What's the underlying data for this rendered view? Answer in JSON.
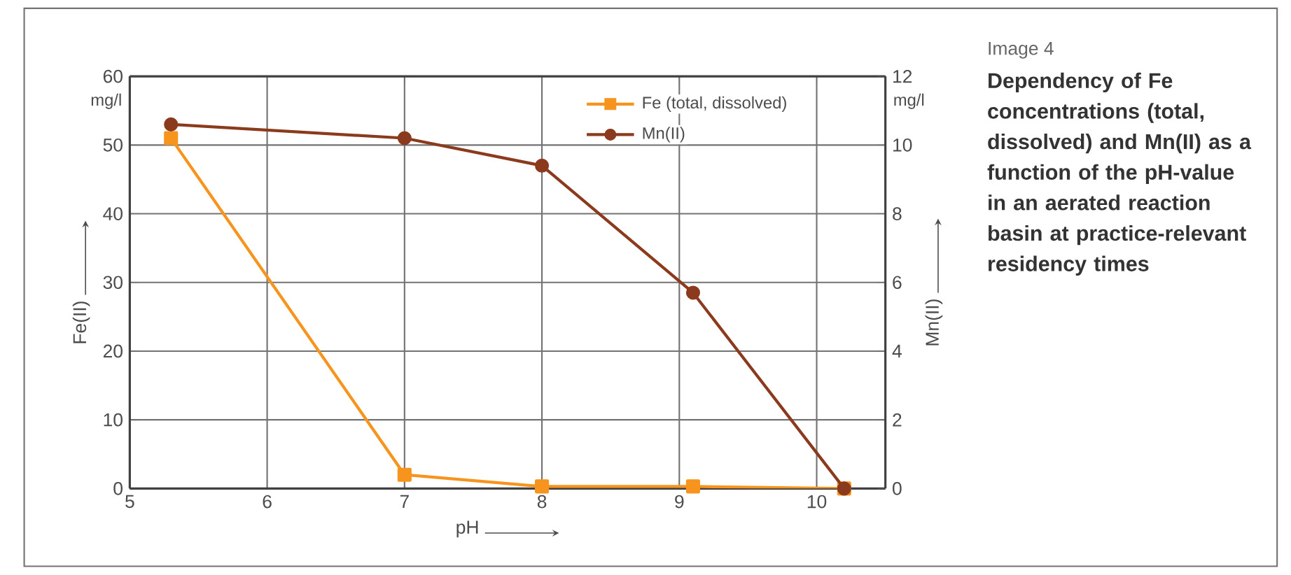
{
  "chart_data": {
    "type": "line",
    "title": "Image 4",
    "subtitle": "**Dependency of Fe concentrations (total, dissolved) and Mn(II) as a function of the pH-value in an aerated reaction basin at practice-relevant residency times**",
    "xlabel": "pH",
    "ylabel": "Fe(II)",
    "y2label": "Mn(II)",
    "annotations": [
      "mg/l",
      "mg/l"
    ],
    "xlim": [
      5,
      10.5
    ],
    "xticks": [
      5,
      6,
      7,
      8,
      9,
      10
    ],
    "ylim": [
      0,
      60
    ],
    "yticks": [
      0,
      10,
      20,
      30,
      40,
      50,
      60
    ],
    "y2lim": [
      0,
      12
    ],
    "y2ticks": [
      0,
      2,
      4,
      6,
      8,
      10,
      12
    ],
    "grid": true,
    "legend": "top right",
    "series": [
      {
        "name": "Fe (total, dissolved)",
        "color": "#f7941d",
        "marker": "square",
        "x": [
          5.3,
          7,
          8,
          9.1,
          10.2
        ],
        "values": [
          51,
          2,
          0.3,
          0.3,
          0
        ]
      },
      {
        "name": "Mn(II)",
        "color": "#8b3a1e",
        "marker": "circle",
        "axis": "y2",
        "x": [
          5.3,
          7,
          8,
          9.1,
          10.2
        ],
        "values": [
          10.6,
          10.2,
          9.4,
          5.7,
          0
        ]
      }
    ]
  }
}
